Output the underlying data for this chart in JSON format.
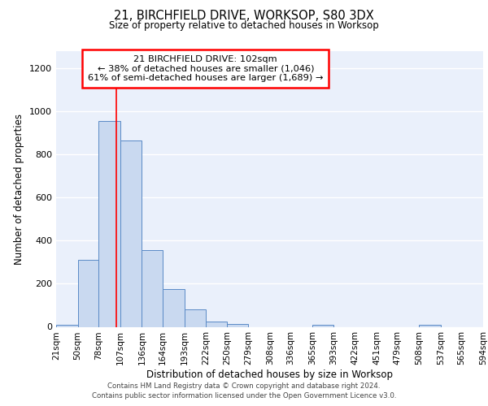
{
  "title1": "21, BIRCHFIELD DRIVE, WORKSOP, S80 3DX",
  "title2": "Size of property relative to detached houses in Worksop",
  "xlabel": "Distribution of detached houses by size in Worksop",
  "ylabel": "Number of detached properties",
  "bin_edges": [
    21,
    50,
    78,
    107,
    136,
    164,
    193,
    222,
    250,
    279,
    308,
    336,
    365,
    393,
    422,
    451,
    479,
    508,
    537,
    565,
    594
  ],
  "bar_heights": [
    10,
    310,
    955,
    865,
    355,
    175,
    80,
    25,
    12,
    0,
    0,
    0,
    10,
    0,
    0,
    0,
    0,
    10,
    0,
    0
  ],
  "bar_color": "#c9d9f0",
  "bar_edge_color": "#5a8ac6",
  "bg_color": "#eaf0fb",
  "grid_color": "#ffffff",
  "red_line_x": 102,
  "annotation_line1": "21 BIRCHFIELD DRIVE: 102sqm",
  "annotation_line2": "← 38% of detached houses are smaller (1,046)",
  "annotation_line3": "61% of semi-detached houses are larger (1,689) →",
  "ylim": [
    0,
    1280
  ],
  "yticks": [
    0,
    200,
    400,
    600,
    800,
    1000,
    1200
  ],
  "footer1": "Contains HM Land Registry data © Crown copyright and database right 2024.",
  "footer2": "Contains public sector information licensed under the Open Government Licence v3.0."
}
